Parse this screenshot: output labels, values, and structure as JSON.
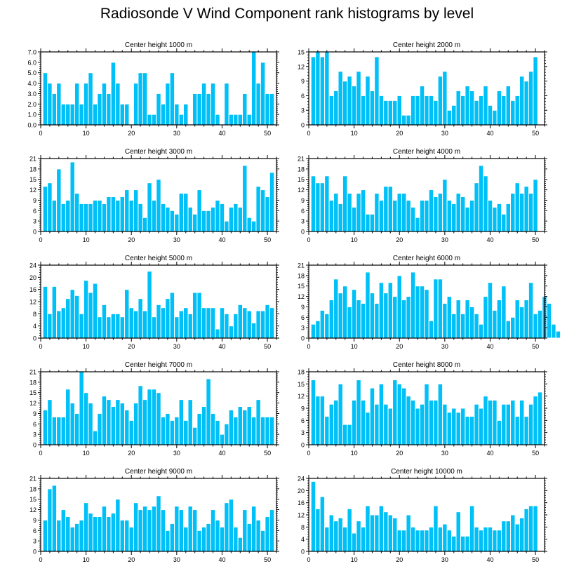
{
  "title": "Radiosonde V Wind Component rank histograms by level",
  "colors": {
    "bar": "#00C0F8",
    "bar_edge": "#ffffff",
    "axis": "#000000"
  },
  "chart_data": [
    {
      "type": "bar",
      "title": "Center height 1000 m",
      "ylim": [
        0,
        7
      ],
      "yticks": [
        0,
        1,
        2,
        3,
        4,
        5,
        6,
        7
      ],
      "ytick_labels": [
        "0.0",
        "1.0",
        "2.0",
        "3.0",
        "4.0",
        "5.0",
        "6.0",
        "7.0"
      ],
      "xlim": [
        0,
        52
      ],
      "xticks": [
        0,
        10,
        20,
        30,
        40,
        50
      ],
      "values": [
        5,
        4,
        3,
        4,
        2,
        2,
        2,
        4,
        2,
        4,
        5,
        2,
        3,
        4,
        3,
        6,
        4,
        2,
        2,
        0,
        4,
        5,
        5,
        1,
        1,
        3,
        2,
        4,
        5,
        2,
        1,
        2,
        0,
        3,
        3,
        4,
        3,
        4,
        1,
        0,
        4,
        1,
        1,
        1,
        3,
        1,
        7,
        4,
        6,
        3,
        3
      ]
    },
    {
      "type": "bar",
      "title": "Center height 2000 m",
      "ylim": [
        0,
        15
      ],
      "yticks": [
        0,
        3,
        6,
        9,
        12,
        15
      ],
      "ytick_labels": [
        "0",
        "3",
        "6",
        "9",
        "12",
        "15"
      ],
      "xlim": [
        0,
        52
      ],
      "xticks": [
        0,
        10,
        20,
        30,
        40,
        50
      ],
      "values": [
        14,
        15,
        14,
        15,
        6,
        7,
        11,
        9,
        10,
        8,
        11,
        6,
        10,
        7,
        14,
        6,
        5,
        5,
        5,
        6,
        2,
        2,
        6,
        6,
        8,
        6,
        6,
        5,
        10,
        11,
        3,
        4,
        7,
        6,
        8,
        7,
        5,
        6,
        8,
        4,
        3,
        7,
        6,
        8,
        5,
        6,
        10,
        9,
        11,
        14
      ]
    },
    {
      "type": "bar",
      "title": "Center height 3000 m",
      "ylim": [
        0,
        21
      ],
      "yticks": [
        0,
        3,
        6,
        9,
        12,
        15,
        18,
        21
      ],
      "ytick_labels": [
        "0",
        "3",
        "6",
        "9",
        "12",
        "15",
        "18",
        "21"
      ],
      "xlim": [
        0,
        52
      ],
      "xticks": [
        0,
        10,
        20,
        30,
        40,
        50
      ],
      "values": [
        13,
        14,
        9,
        18,
        8,
        9,
        20,
        11,
        8,
        8,
        8,
        9,
        9,
        8,
        10,
        10,
        9,
        10,
        12,
        9,
        12,
        8,
        4,
        14,
        9,
        15,
        8,
        7,
        6,
        5,
        11,
        11,
        7,
        5,
        12,
        6,
        6,
        7,
        9,
        8,
        3,
        7,
        8,
        7,
        19,
        4,
        3,
        13,
        12,
        10,
        17
      ]
    },
    {
      "type": "bar",
      "title": "Center height 4000 m",
      "ylim": [
        0,
        21
      ],
      "yticks": [
        0,
        3,
        6,
        9,
        12,
        15,
        18,
        21
      ],
      "ytick_labels": [
        "0",
        "3",
        "6",
        "9",
        "12",
        "15",
        "18",
        "21"
      ],
      "xlim": [
        0,
        52
      ],
      "xticks": [
        0,
        10,
        20,
        30,
        40,
        50
      ],
      "values": [
        16,
        14,
        14,
        16,
        9,
        11,
        8,
        16,
        11,
        7,
        11,
        12,
        5,
        5,
        11,
        9,
        13,
        13,
        9,
        11,
        11,
        9,
        7,
        4,
        9,
        9,
        12,
        10,
        11,
        15,
        9,
        8,
        11,
        10,
        7,
        9,
        14,
        19,
        16,
        9,
        7,
        8,
        5,
        8,
        11,
        14,
        11,
        13,
        11,
        15
      ]
    },
    {
      "type": "bar",
      "title": "Center height 5000 m",
      "ylim": [
        0,
        24
      ],
      "yticks": [
        0,
        4,
        8,
        12,
        16,
        20,
        24
      ],
      "ytick_labels": [
        "0",
        "4",
        "8",
        "12",
        "16",
        "20",
        "24"
      ],
      "xlim": [
        0,
        52
      ],
      "xticks": [
        0,
        10,
        20,
        30,
        40,
        50
      ],
      "values": [
        17,
        8,
        17,
        9,
        10,
        13,
        16,
        14,
        8,
        19,
        15,
        18,
        7,
        11,
        7,
        8,
        8,
        7,
        16,
        10,
        9,
        13,
        9,
        22,
        7,
        11,
        10,
        13,
        15,
        7,
        9,
        10,
        8,
        15,
        15,
        10,
        10,
        10,
        3,
        10,
        8,
        4,
        8,
        11,
        10,
        9,
        5,
        9,
        9,
        11,
        10
      ]
    },
    {
      "type": "bar",
      "title": "Center height 6000 m",
      "ylim": [
        0,
        21
      ],
      "yticks": [
        0,
        3,
        6,
        9,
        12,
        15,
        18,
        21
      ],
      "ytick_labels": [
        "0",
        "3",
        "6",
        "9",
        "12",
        "15",
        "18",
        "21"
      ],
      "xlim": [
        0,
        52
      ],
      "xticks": [
        0,
        10,
        20,
        30,
        40,
        50
      ],
      "values": [
        4,
        5,
        8,
        7,
        11,
        17,
        13,
        15,
        9,
        14,
        11,
        10,
        19,
        13,
        10,
        16,
        13,
        16,
        12,
        18,
        11,
        12,
        19,
        15,
        15,
        14,
        5,
        17,
        17,
        10,
        12,
        7,
        11,
        7,
        11,
        9,
        7,
        4,
        12,
        16,
        8,
        11,
        15,
        5,
        6,
        11,
        9,
        11,
        16,
        7,
        8,
        12,
        10,
        4,
        2
      ]
    },
    {
      "type": "bar",
      "title": "Center height 7000 m",
      "ylim": [
        0,
        21
      ],
      "yticks": [
        0,
        3,
        6,
        9,
        12,
        15,
        18,
        21
      ],
      "ytick_labels": [
        "0",
        "3",
        "6",
        "9",
        "12",
        "15",
        "18",
        "21"
      ],
      "xlim": [
        0,
        52
      ],
      "xticks": [
        0,
        10,
        20,
        30,
        40,
        50
      ],
      "values": [
        10,
        13,
        8,
        8,
        8,
        16,
        12,
        9,
        21,
        15,
        12,
        4,
        9,
        14,
        13,
        11,
        13,
        12,
        10,
        7,
        12,
        17,
        13,
        16,
        16,
        15,
        8,
        9,
        7,
        8,
        13,
        7,
        13,
        5,
        9,
        11,
        19,
        9,
        7,
        3,
        6,
        10,
        8,
        11,
        10,
        11,
        8,
        13,
        8,
        8,
        8
      ]
    },
    {
      "type": "bar",
      "title": "Center height 8000 m",
      "ylim": [
        0,
        18
      ],
      "yticks": [
        0,
        3,
        6,
        9,
        12,
        15,
        18
      ],
      "ytick_labels": [
        "0",
        "3",
        "6",
        "9",
        "12",
        "15",
        "18"
      ],
      "xlim": [
        0,
        52
      ],
      "xticks": [
        0,
        10,
        20,
        30,
        40,
        50
      ],
      "values": [
        16,
        12,
        12,
        7,
        10,
        11,
        15,
        5,
        5,
        11,
        16,
        11,
        8,
        14,
        10,
        15,
        10,
        9,
        16,
        15,
        14,
        12,
        11,
        9,
        10,
        15,
        11,
        11,
        15,
        10,
        8,
        9,
        8,
        9,
        7,
        7,
        10,
        9,
        12,
        11,
        11,
        6,
        10,
        10,
        11,
        7,
        11,
        7,
        10,
        12,
        13
      ]
    },
    {
      "type": "bar",
      "title": "Center height 9000 m",
      "ylim": [
        0,
        21
      ],
      "yticks": [
        0,
        3,
        6,
        9,
        12,
        15,
        18,
        21
      ],
      "ytick_labels": [
        "0",
        "3",
        "6",
        "9",
        "12",
        "15",
        "18",
        "21"
      ],
      "xlim": [
        0,
        52
      ],
      "xticks": [
        0,
        10,
        20,
        30,
        40,
        50
      ],
      "values": [
        9,
        18,
        19,
        9,
        12,
        10,
        7,
        8,
        9,
        14,
        11,
        10,
        10,
        13,
        10,
        11,
        15,
        9,
        9,
        7,
        14,
        12,
        13,
        12,
        13,
        16,
        12,
        6,
        8,
        13,
        12,
        7,
        13,
        12,
        6,
        7,
        8,
        12,
        9,
        7,
        14,
        15,
        7,
        4,
        12,
        8,
        13,
        9,
        6,
        10,
        12
      ]
    },
    {
      "type": "bar",
      "title": "Center height 10000 m",
      "ylim": [
        0,
        24
      ],
      "yticks": [
        0,
        4,
        8,
        12,
        16,
        20,
        24
      ],
      "ytick_labels": [
        "0",
        "4",
        "8",
        "12",
        "16",
        "20",
        "24"
      ],
      "xlim": [
        0,
        52
      ],
      "xticks": [
        0,
        10,
        20,
        30,
        40,
        50
      ],
      "values": [
        23,
        14,
        18,
        8,
        12,
        10,
        11,
        8,
        14,
        6,
        10,
        8,
        15,
        12,
        12,
        15,
        13,
        12,
        11,
        7,
        7,
        12,
        8,
        7,
        7,
        7,
        8,
        15,
        8,
        9,
        7,
        5,
        13,
        5,
        5,
        15,
        8,
        7,
        8,
        8,
        7,
        7,
        10,
        10,
        12,
        9,
        11,
        14,
        15,
        15
      ]
    }
  ]
}
